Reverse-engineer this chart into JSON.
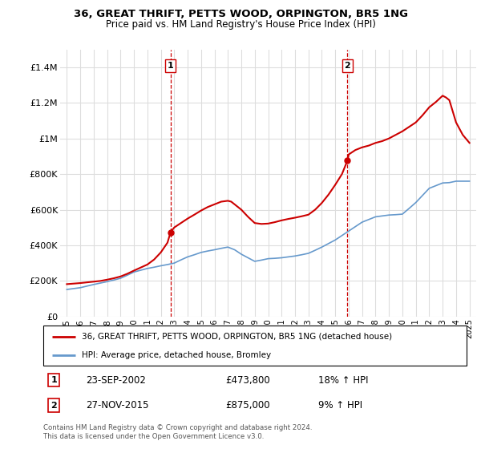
{
  "title": "36, GREAT THRIFT, PETTS WOOD, ORPINGTON, BR5 1NG",
  "subtitle": "Price paid vs. HM Land Registry's House Price Index (HPI)",
  "legend_property": "36, GREAT THRIFT, PETTS WOOD, ORPINGTON, BR5 1NG (detached house)",
  "legend_hpi": "HPI: Average price, detached house, Bromley",
  "transaction1_date": "23-SEP-2002",
  "transaction1_price": "£473,800",
  "transaction1_hpi": "18% ↑ HPI",
  "transaction1_label": "1",
  "transaction1_year": 2002.73,
  "transaction1_price_val": 473800,
  "transaction2_date": "27-NOV-2015",
  "transaction2_price": "£875,000",
  "transaction2_hpi": "9% ↑ HPI",
  "transaction2_label": "2",
  "transaction2_year": 2015.9,
  "transaction2_price_val": 875000,
  "footer": "Contains HM Land Registry data © Crown copyright and database right 2024.\nThis data is licensed under the Open Government Licence v3.0.",
  "property_color": "#cc0000",
  "hpi_color": "#6699cc",
  "background_color": "#ffffff",
  "grid_color": "#dddddd",
  "ylim": [
    0,
    1500000
  ],
  "xlim_start": 1994.5,
  "xlim_end": 2025.5,
  "yticks": [
    0,
    200000,
    400000,
    600000,
    800000,
    1000000,
    1200000,
    1400000
  ],
  "ytick_labels": [
    "£0",
    "£200K",
    "£400K",
    "£600K",
    "£800K",
    "£1M",
    "£1.2M",
    "£1.4M"
  ],
  "xticks": [
    1995,
    1996,
    1997,
    1998,
    1999,
    2000,
    2001,
    2002,
    2003,
    2004,
    2005,
    2006,
    2007,
    2008,
    2009,
    2010,
    2011,
    2012,
    2013,
    2014,
    2015,
    2016,
    2017,
    2018,
    2019,
    2020,
    2021,
    2022,
    2023,
    2024,
    2025
  ],
  "hpi_x": [
    1995,
    1995.5,
    1996,
    1996.5,
    1997,
    1997.5,
    1998,
    1998.5,
    1999,
    1999.5,
    2000,
    2000.5,
    2001,
    2001.5,
    2002,
    2002.5,
    2003,
    2003.5,
    2004,
    2004.5,
    2005,
    2005.5,
    2006,
    2006.5,
    2007,
    2007.5,
    2008,
    2008.5,
    2009,
    2009.5,
    2010,
    2010.5,
    2011,
    2011.5,
    2012,
    2012.5,
    2013,
    2013.5,
    2014,
    2014.5,
    2015,
    2015.5,
    2016,
    2016.5,
    2017,
    2017.5,
    2018,
    2018.5,
    2019,
    2019.5,
    2020,
    2020.5,
    2021,
    2021.5,
    2022,
    2022.5,
    2023,
    2023.5,
    2024,
    2024.5,
    2025
  ],
  "hpi_y": [
    152000,
    157000,
    162000,
    171000,
    180000,
    188000,
    196000,
    205000,
    215000,
    232000,
    250000,
    260000,
    270000,
    277000,
    285000,
    292000,
    300000,
    318000,
    335000,
    347000,
    360000,
    368000,
    375000,
    383000,
    390000,
    375000,
    350000,
    330000,
    310000,
    317000,
    325000,
    327000,
    330000,
    335000,
    340000,
    347000,
    355000,
    372000,
    390000,
    410000,
    430000,
    455000,
    480000,
    505000,
    530000,
    545000,
    560000,
    565000,
    570000,
    572000,
    575000,
    607000,
    640000,
    680000,
    720000,
    735000,
    750000,
    752000,
    760000,
    760000,
    760000
  ],
  "property_x": [
    1995,
    1995.5,
    1996,
    1996.5,
    1997,
    1997.5,
    1998,
    1998.5,
    1999,
    1999.5,
    2000,
    2000.5,
    2001,
    2001.5,
    2002,
    2002.5,
    2002.73,
    2003,
    2003.5,
    2004,
    2004.5,
    2005,
    2005.5,
    2006,
    2006.5,
    2007,
    2007.25,
    2007.5,
    2008,
    2008.5,
    2009,
    2009.5,
    2010,
    2010.5,
    2011,
    2011.5,
    2012,
    2012.5,
    2013,
    2013.5,
    2014,
    2014.5,
    2015,
    2015.5,
    2015.9,
    2016,
    2016.5,
    2017,
    2017.5,
    2018,
    2018.5,
    2019,
    2019.5,
    2020,
    2020.5,
    2021,
    2021.5,
    2022,
    2022.5,
    2023,
    2023.25,
    2023.5,
    2024,
    2024.5,
    2025
  ],
  "property_y": [
    182000,
    185000,
    188000,
    192000,
    196000,
    200000,
    207000,
    215000,
    225000,
    240000,
    258000,
    275000,
    292000,
    320000,
    360000,
    415000,
    473800,
    500000,
    525000,
    550000,
    572000,
    595000,
    615000,
    630000,
    645000,
    650000,
    645000,
    630000,
    600000,
    560000,
    525000,
    520000,
    522000,
    530000,
    540000,
    548000,
    555000,
    563000,
    572000,
    600000,
    638000,
    685000,
    740000,
    800000,
    875000,
    910000,
    935000,
    950000,
    960000,
    975000,
    985000,
    1000000,
    1020000,
    1040000,
    1065000,
    1090000,
    1130000,
    1175000,
    1205000,
    1240000,
    1230000,
    1215000,
    1090000,
    1020000,
    975000
  ]
}
